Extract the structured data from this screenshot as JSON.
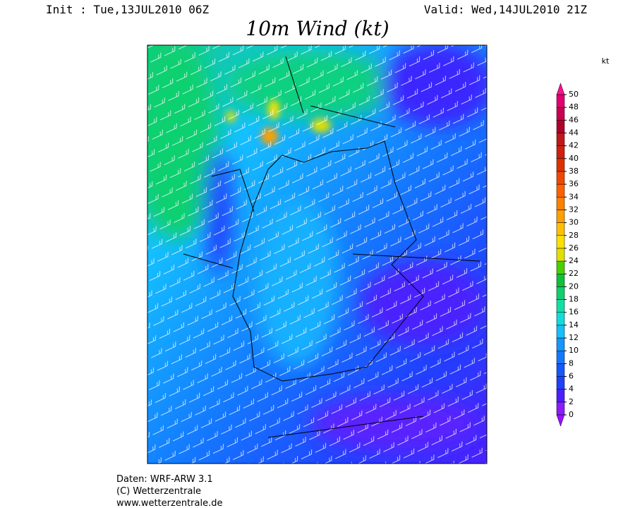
{
  "header": {
    "init": "Init : Tue,13JUL2010 06Z",
    "valid": "Valid: Wed,14JUL2010 21Z",
    "title": "10m Wind (kt)"
  },
  "colorbar": {
    "unit": "kt",
    "ticks": [
      0,
      2,
      4,
      6,
      8,
      10,
      12,
      14,
      16,
      18,
      20,
      22,
      24,
      26,
      28,
      30,
      32,
      34,
      36,
      38,
      40,
      42,
      44,
      46,
      48,
      50
    ],
    "colors": [
      "#8a1cff",
      "#4a20ff",
      "#2040ff",
      "#1458ff",
      "#1478ff",
      "#1498ff",
      "#14c0ff",
      "#10dcdc",
      "#10e0a8",
      "#10d070",
      "#10c038",
      "#48d000",
      "#e0e000",
      "#ffe000",
      "#ffc000",
      "#ffa000",
      "#ff8000",
      "#ff6000",
      "#f04800",
      "#e03000",
      "#d02010",
      "#c01818",
      "#b00028",
      "#c80050",
      "#e00070"
    ],
    "below_color": "#9a10ff",
    "above_color": "#ff1090"
  },
  "footer": [
    "Daten: WRF-ARW 3.1",
    "(C) Wetterzentrale",
    "www.wetterzentrale.de"
  ]
}
